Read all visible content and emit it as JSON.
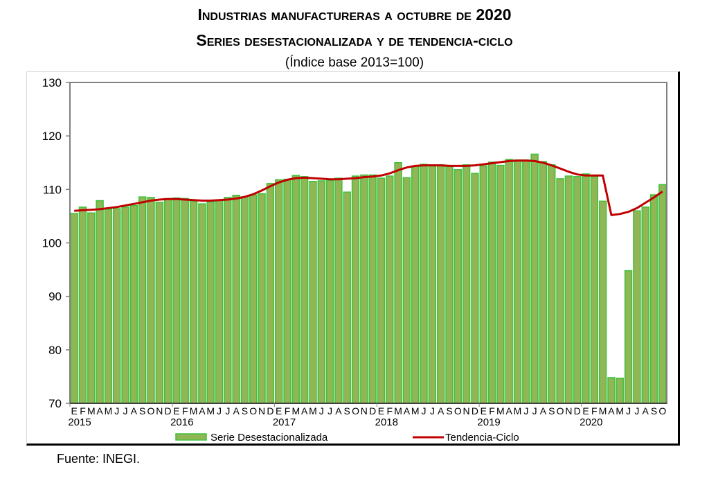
{
  "title_line1": "Industrias manufactureras a octubre de 2020",
  "title_line2": "Series desestacionalizada y de tendencia-ciclo",
  "subtitle": "(Índice base 2013=100)",
  "source": "Fuente: INEGI.",
  "colors": {
    "bar_fill": "#92b556",
    "bar_stroke": "#3cc33c",
    "trend": "#c00000",
    "axis": "#808080"
  },
  "chart_data": {
    "type": "bar",
    "title": "Industrias manufactureras a octubre de 2020 — Series desestacionalizada y de tendencia-ciclo",
    "subtitle": "(Índice base 2013=100)",
    "xlabel": "",
    "ylabel": "",
    "ylim": [
      70,
      130
    ],
    "yticks": [
      70,
      80,
      90,
      100,
      110,
      120,
      130
    ],
    "grid": false,
    "legend": "bottom",
    "month_labels": [
      "E",
      "F",
      "M",
      "A",
      "M",
      "J",
      "J",
      "A",
      "S",
      "O",
      "N",
      "D"
    ],
    "years": [
      "2015",
      "2016",
      "2017",
      "2018",
      "2019",
      "2020"
    ],
    "start": "2015-01",
    "end": "2020-10",
    "series": [
      {
        "name": "Serie Desestacionalizada",
        "type": "bar",
        "values": [
          105.5,
          106.7,
          105.6,
          107.9,
          106.3,
          106.4,
          106.7,
          107.0,
          108.6,
          108.5,
          107.6,
          108.3,
          108.4,
          108.3,
          107.8,
          107.3,
          107.7,
          107.9,
          108.5,
          108.9,
          108.6,
          109.0,
          109.2,
          111.1,
          111.8,
          111.9,
          112.6,
          112.4,
          111.5,
          111.6,
          111.7,
          112.1,
          109.5,
          112.5,
          112.7,
          112.7,
          112.1,
          112.5,
          115.0,
          112.2,
          114.4,
          114.7,
          114.6,
          114.6,
          114.3,
          113.7,
          114.6,
          113.0,
          114.4,
          115.1,
          114.5,
          115.6,
          115.5,
          115.5,
          116.6,
          115.2,
          114.6,
          112.0,
          112.5,
          112.4,
          112.9,
          112.4,
          107.8,
          74.8,
          74.7,
          94.8,
          106.0,
          106.7,
          109.0,
          110.9
        ]
      },
      {
        "name": "Tendencia-Ciclo",
        "type": "line",
        "values": [
          106.0,
          106.1,
          106.2,
          106.3,
          106.5,
          106.7,
          107.0,
          107.3,
          107.6,
          107.9,
          108.1,
          108.2,
          108.2,
          108.1,
          108.0,
          107.9,
          107.9,
          108.0,
          108.1,
          108.3,
          108.6,
          109.1,
          109.8,
          110.6,
          111.3,
          111.8,
          112.1,
          112.2,
          112.1,
          112.0,
          111.9,
          111.9,
          112.0,
          112.1,
          112.3,
          112.4,
          112.6,
          113.0,
          113.6,
          114.1,
          114.4,
          114.5,
          114.5,
          114.5,
          114.4,
          114.4,
          114.4,
          114.5,
          114.7,
          114.9,
          115.1,
          115.3,
          115.4,
          115.4,
          115.3,
          115.0,
          114.5,
          113.9,
          113.3,
          112.8,
          112.6,
          112.6,
          112.6,
          105.2,
          105.4,
          105.8,
          106.5,
          107.5,
          108.5,
          109.6
        ]
      }
    ]
  }
}
